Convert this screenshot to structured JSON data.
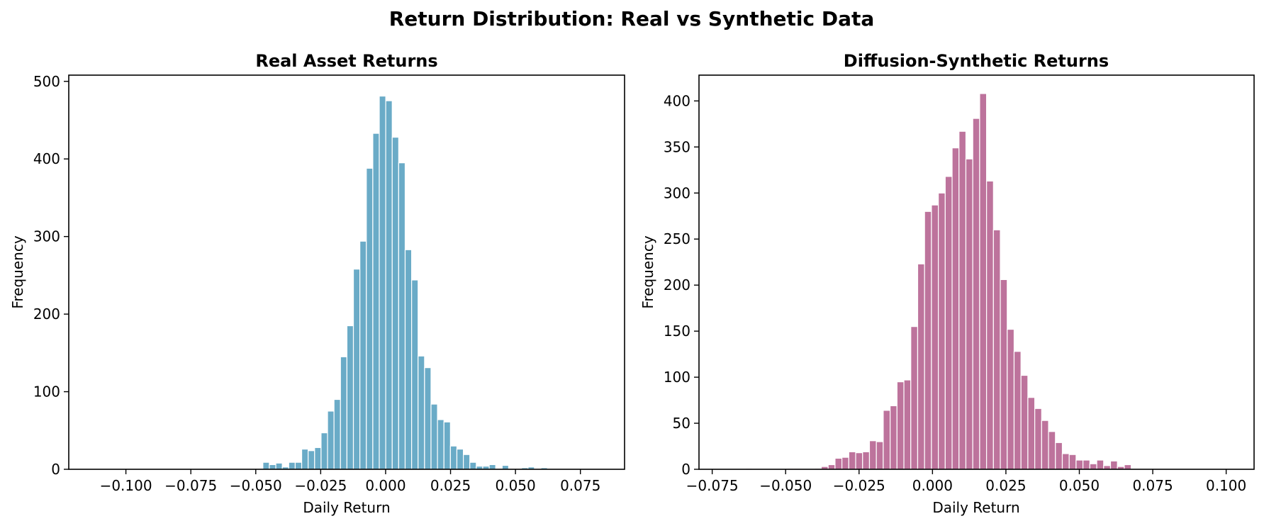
{
  "figure": {
    "suptitle": "Return Distribution: Real vs Synthetic Data"
  },
  "chart_data": [
    {
      "type": "bar",
      "title": "Real Asset Returns",
      "xlabel": "Daily Return",
      "ylabel": "Frequency",
      "color": "#6aabc7",
      "xlim": [
        -0.122,
        0.092
      ],
      "ylim": [
        0,
        508
      ],
      "xticks": [
        -0.1,
        -0.075,
        -0.05,
        -0.025,
        0.0,
        0.025,
        0.05,
        0.075
      ],
      "xtick_labels": [
        "−0.100",
        "−0.075",
        "−0.050",
        "−0.025",
        "0.000",
        "0.025",
        "0.050",
        "0.075"
      ],
      "yticks": [
        0,
        100,
        200,
        300,
        400,
        500
      ],
      "ytick_labels": [
        "0",
        "100",
        "200",
        "300",
        "400",
        "500"
      ],
      "bin_start": -0.112,
      "bin_width": 0.00249,
      "values": [
        0,
        0,
        0,
        0,
        0,
        0,
        0,
        0,
        0,
        0,
        0,
        0,
        0,
        0,
        0,
        0,
        0,
        0,
        0,
        0,
        0,
        0,
        0,
        1,
        0,
        1,
        9,
        6,
        8,
        3,
        9,
        9,
        26,
        24,
        28,
        47,
        75,
        90,
        145,
        185,
        258,
        294,
        388,
        433,
        481,
        475,
        428,
        395,
        283,
        244,
        146,
        131,
        84,
        64,
        61,
        30,
        26,
        19,
        9,
        4,
        4,
        6,
        1,
        5,
        1,
        0,
        2,
        3,
        1,
        2
      ]
    },
    {
      "type": "bar",
      "title": "Diffusion-Synthetic Returns",
      "xlabel": "Daily Return",
      "ylabel": "Frequency",
      "color": "#bd739c",
      "xlim": [
        -0.0795,
        0.1095
      ],
      "ylim": [
        0,
        428
      ],
      "xticks": [
        -0.075,
        -0.05,
        -0.025,
        0.0,
        0.025,
        0.05,
        0.075,
        0.1
      ],
      "xtick_labels": [
        "−0.075",
        "−0.050",
        "−0.025",
        "0.000",
        "0.025",
        "0.050",
        "0.075",
        "0.100"
      ],
      "yticks": [
        0,
        50,
        100,
        150,
        200,
        250,
        300,
        350,
        400
      ],
      "ytick_labels": [
        "0",
        "50",
        "100",
        "150",
        "200",
        "250",
        "300",
        "350",
        "400"
      ],
      "bin_start": -0.0707,
      "bin_width": 0.002345,
      "values": [
        0,
        0,
        0,
        1,
        0,
        0,
        0,
        0,
        0,
        1,
        1,
        0,
        0,
        1,
        3,
        5,
        12,
        13,
        19,
        18,
        19,
        31,
        30,
        64,
        69,
        95,
        97,
        155,
        223,
        280,
        287,
        300,
        318,
        349,
        367,
        337,
        381,
        408,
        313,
        260,
        206,
        152,
        128,
        102,
        78,
        66,
        53,
        41,
        29,
        17,
        16,
        10,
        10,
        6,
        10,
        4,
        9,
        3,
        5,
        0,
        0,
        0,
        0,
        0,
        0,
        0,
        0,
        0,
        0,
        0,
        0,
        0,
        0,
        0,
        0,
        0,
        0,
        0,
        0,
        1
      ]
    }
  ]
}
